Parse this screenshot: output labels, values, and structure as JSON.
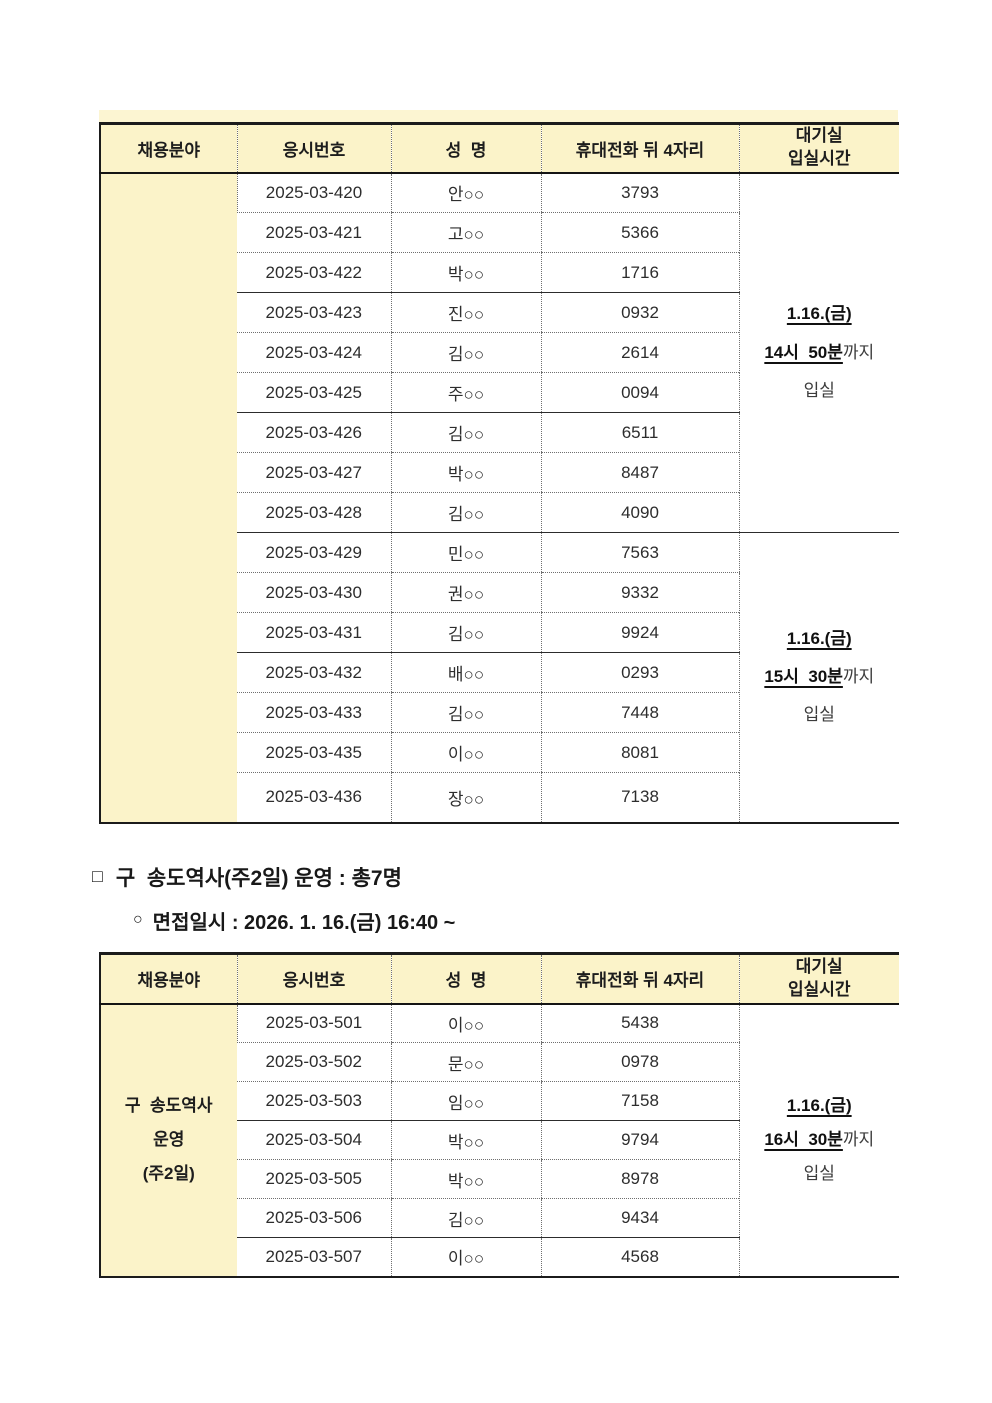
{
  "colors": {
    "header_bg": "#fbf3c9",
    "border_dark": "#1b1b1b",
    "text": "#2d2d2d"
  },
  "columns": [
    "채용분야",
    "응시번호",
    "성  명",
    "휴대전화 뒤 4자리",
    "대기실\n입실시간"
  ],
  "table1": {
    "category_lines": [],
    "rows": [
      {
        "no": "2025-03-420",
        "name": "안○○",
        "phone": "3793"
      },
      {
        "no": "2025-03-421",
        "name": "고○○",
        "phone": "5366"
      },
      {
        "no": "2025-03-422",
        "name": "박○○",
        "phone": "1716"
      },
      {
        "no": "2025-03-423",
        "name": "진○○",
        "phone": "0932"
      },
      {
        "no": "2025-03-424",
        "name": "김○○",
        "phone": "2614"
      },
      {
        "no": "2025-03-425",
        "name": "주○○",
        "phone": "0094"
      },
      {
        "no": "2025-03-426",
        "name": "김○○",
        "phone": "6511"
      },
      {
        "no": "2025-03-427",
        "name": "박○○",
        "phone": "8487"
      },
      {
        "no": "2025-03-428",
        "name": "김○○",
        "phone": "4090"
      },
      {
        "no": "2025-03-429",
        "name": "민○○",
        "phone": "7563"
      },
      {
        "no": "2025-03-430",
        "name": "권○○",
        "phone": "9332"
      },
      {
        "no": "2025-03-431",
        "name": "김○○",
        "phone": "9924"
      },
      {
        "no": "2025-03-432",
        "name": "배○○",
        "phone": "0293"
      },
      {
        "no": "2025-03-433",
        "name": "김○○",
        "phone": "7448"
      },
      {
        "no": "2025-03-435",
        "name": "이○○",
        "phone": "8081"
      },
      {
        "no": "2025-03-436",
        "name": "장○○",
        "phone": "7138"
      }
    ],
    "groups": [
      {
        "start": 0,
        "span": 9,
        "boundary": true,
        "date": "1.16.(금)",
        "time_bold": "14시  50분",
        "time_suffix": "까지",
        "line3": "입실"
      },
      {
        "start": 9,
        "span": 7,
        "boundary": false,
        "date": "1.16.(금)",
        "time_bold": "15시  30분",
        "time_suffix": "까지",
        "line3": "입실"
      }
    ],
    "solid_after": [
      2,
      5,
      8,
      11
    ]
  },
  "section": {
    "bullet": "□",
    "title": "구  송도역사(주2일) 운영 : 총7명",
    "sub_bullet": "○",
    "subtitle": "면접일시 : 2026. 1. 16.(금) 16:40 ~"
  },
  "table2": {
    "category_lines": [
      "구  송도역사",
      "운영",
      "(주2일)"
    ],
    "rows": [
      {
        "no": "2025-03-501",
        "name": "이○○",
        "phone": "5438"
      },
      {
        "no": "2025-03-502",
        "name": "문○○",
        "phone": "0978"
      },
      {
        "no": "2025-03-503",
        "name": "임○○",
        "phone": "7158"
      },
      {
        "no": "2025-03-504",
        "name": "박○○",
        "phone": "9794"
      },
      {
        "no": "2025-03-505",
        "name": "박○○",
        "phone": "8978"
      },
      {
        "no": "2025-03-506",
        "name": "김○○",
        "phone": "9434"
      },
      {
        "no": "2025-03-507",
        "name": "이○○",
        "phone": "4568"
      }
    ],
    "groups": [
      {
        "start": 0,
        "span": 7,
        "boundary": false,
        "date": "1.16.(금)",
        "time_bold": "16시  30분",
        "time_suffix": "까지",
        "line3": "입실"
      }
    ],
    "solid_after": [
      2,
      5
    ]
  }
}
